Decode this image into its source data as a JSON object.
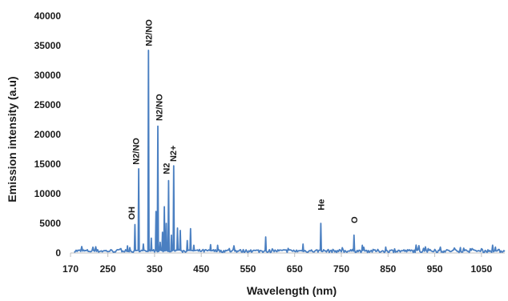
{
  "chart_data": {
    "type": "line",
    "title": "",
    "xlabel": "Wavelength (nm)",
    "ylabel": "Emission intensity (a.u)",
    "xlim": [
      170,
      1100
    ],
    "ylim": [
      0,
      40000
    ],
    "grid": false,
    "legend": "none",
    "color": "#4a7fc1",
    "x_ticks": [
      "170",
      "250",
      "350",
      "450",
      "550",
      "650",
      "750",
      "850",
      "950",
      "1050"
    ],
    "x_tick_values": [
      170,
      250,
      350,
      450,
      550,
      650,
      750,
      850,
      950,
      1050
    ],
    "y_ticks": [
      "0",
      "5000",
      "10000",
      "15000",
      "20000",
      "25000",
      "30000",
      "35000",
      "40000"
    ],
    "y_tick_values": [
      0,
      5000,
      10000,
      15000,
      20000,
      25000,
      30000,
      35000,
      40000
    ],
    "series": [
      {
        "peaks": [
          {
            "x": 292,
            "y": 1200
          },
          {
            "x": 297,
            "y": 900
          },
          {
            "x": 308,
            "y": 4800
          },
          {
            "x": 316,
            "y": 14200
          },
          {
            "x": 326,
            "y": 1500
          },
          {
            "x": 337,
            "y": 34200
          },
          {
            "x": 343,
            "y": 2500
          },
          {
            "x": 353,
            "y": 7000
          },
          {
            "x": 357,
            "y": 21400
          },
          {
            "x": 362,
            "y": 1800
          },
          {
            "x": 367,
            "y": 3500
          },
          {
            "x": 371,
            "y": 7800
          },
          {
            "x": 375,
            "y": 5000
          },
          {
            "x": 380,
            "y": 12200
          },
          {
            "x": 386,
            "y": 3000
          },
          {
            "x": 391,
            "y": 14700
          },
          {
            "x": 399,
            "y": 4200
          },
          {
            "x": 405,
            "y": 3800
          },
          {
            "x": 420,
            "y": 2100
          },
          {
            "x": 427,
            "y": 4100
          },
          {
            "x": 434,
            "y": 1300
          },
          {
            "x": 470,
            "y": 1400
          },
          {
            "x": 485,
            "y": 1300
          },
          {
            "x": 588,
            "y": 2700
          },
          {
            "x": 668,
            "y": 1500
          },
          {
            "x": 706,
            "y": 5000
          },
          {
            "x": 777,
            "y": 3000
          },
          {
            "x": 795,
            "y": 1300
          },
          {
            "x": 845,
            "y": 1000
          },
          {
            "x": 1005,
            "y": 900
          },
          {
            "x": 1080,
            "y": 1000
          }
        ]
      }
    ],
    "annotations": [
      {
        "text": "OH",
        "x": 300,
        "y": 5600,
        "rotate": true
      },
      {
        "text": "N2/NO",
        "x": 310,
        "y": 14900,
        "rotate": true
      },
      {
        "text": "N2/NO",
        "x": 337,
        "y": 34900,
        "rotate": true
      },
      {
        "text": "N2/NO",
        "x": 360,
        "y": 22300,
        "rotate": true
      },
      {
        "text": "N2",
        "x": 375,
        "y": 13300,
        "rotate": true
      },
      {
        "text": "N2+",
        "x": 390,
        "y": 15400,
        "rotate": true
      },
      {
        "text": "He",
        "x": 706,
        "y": 7200,
        "rotate": true
      },
      {
        "text": "O",
        "x": 777,
        "y": 5000,
        "rotate": true
      }
    ]
  }
}
